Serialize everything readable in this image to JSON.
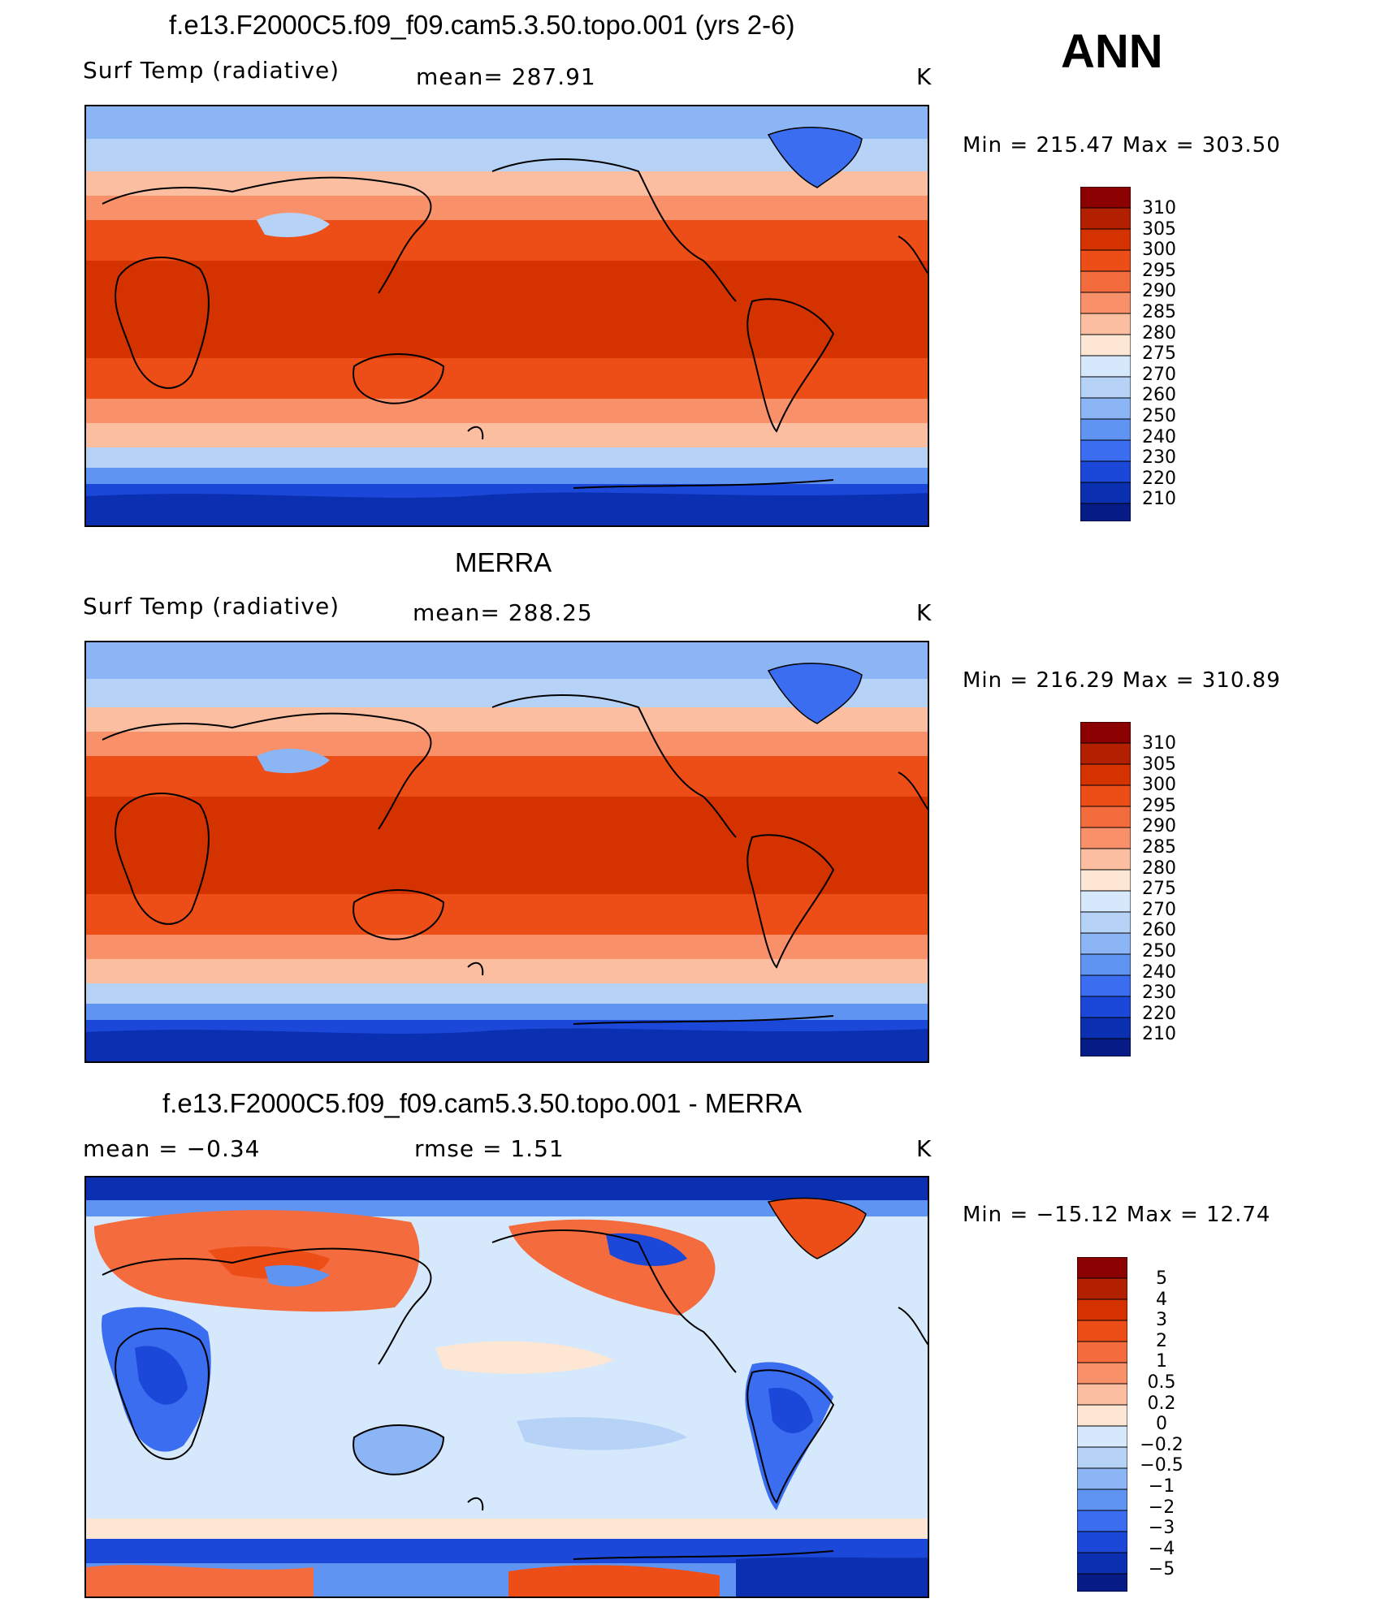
{
  "season": "ANN",
  "unit": "K",
  "panels": [
    {
      "title": "f.e13.F2000C5.f09_f09.cam5.3.50.topo.001 (yrs 2-6)",
      "left_text": "Surf Temp (radiative)",
      "mid_text": "mean= 287.91",
      "minmax": "Min = 215.47 Max = 303.50",
      "colorbar_ticks": [
        "310",
        "305",
        "300",
        "295",
        "290",
        "285",
        "280",
        "275",
        "270",
        "260",
        "250",
        "240",
        "230",
        "220",
        "210"
      ]
    },
    {
      "title": "MERRA",
      "left_text": "Surf Temp (radiative)",
      "mid_text": "mean= 288.25",
      "minmax": "Min = 216.29 Max = 310.89",
      "colorbar_ticks": [
        "310",
        "305",
        "300",
        "295",
        "290",
        "285",
        "280",
        "275",
        "270",
        "260",
        "250",
        "240",
        "230",
        "220",
        "210"
      ]
    },
    {
      "title": "f.e13.F2000C5.f09_f09.cam5.3.50.topo.001 - MERRA",
      "left_text": "mean =   −0.34",
      "mid_text": "rmse =    1.51",
      "minmax": "Min = −15.12 Max =  12.74",
      "colorbar_ticks": [
        "5",
        "4",
        "3",
        "2",
        "1",
        "0.5",
        "0.2",
        "0",
        "−0.2",
        "−0.5",
        "−1",
        "−2",
        "−3",
        "−4",
        "−5"
      ]
    }
  ],
  "colors": {
    "abs_scale": [
      "#8b0000",
      "#b22000",
      "#d43300",
      "#ed4d17",
      "#f46b3d",
      "#f8906a",
      "#fbbea0",
      "#fde6d4",
      "#d6e8fb",
      "#b6d3f7",
      "#8cb5f5",
      "#5f94f2",
      "#3a6df0",
      "#1b48d9",
      "#0a2fb0",
      "#061b86"
    ],
    "diff_scale": [
      "#8b0000",
      "#b22000",
      "#d43300",
      "#ed4d17",
      "#f46b3d",
      "#f8906a",
      "#fbbea0",
      "#fde6d4",
      "#d6e8fb",
      "#b6d3f7",
      "#8cb5f5",
      "#5f94f2",
      "#3a6df0",
      "#1b48d9",
      "#0a2fb0",
      "#061b86"
    ]
  }
}
